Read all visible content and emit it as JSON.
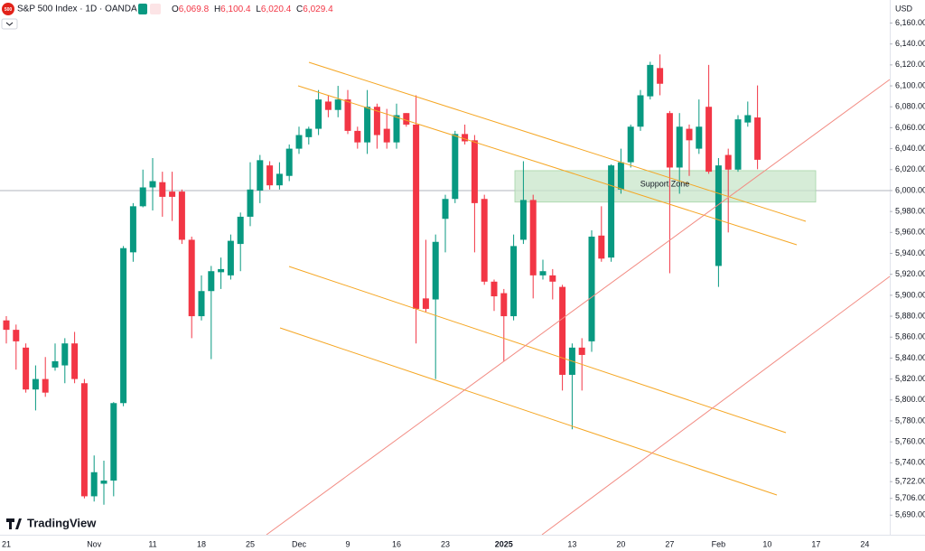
{
  "header": {
    "logo": "500",
    "title": "S&P 500 Index · 1D · OANDA",
    "o_label": "O",
    "o": "6,069.8",
    "h_label": "H",
    "h": "6,100.4",
    "l_label": "L",
    "l": "6,020.4",
    "c_label": "C",
    "c": "6,029.4",
    "brand": "TradingView"
  },
  "chart_data": {
    "type": "candlestick",
    "currency": "USD",
    "categories": [
      "21",
      null,
      null,
      null,
      null,
      null,
      null,
      null,
      null,
      "Nov",
      null,
      null,
      null,
      null,
      null,
      "11",
      null,
      null,
      null,
      null,
      "18",
      null,
      null,
      null,
      null,
      "25",
      null,
      null,
      null,
      null,
      "Dec",
      null,
      null,
      null,
      null,
      "9",
      null,
      null,
      null,
      null,
      "16",
      null,
      null,
      null,
      null,
      "23",
      null,
      null,
      null,
      null,
      null,
      "2025",
      null,
      null,
      null,
      null,
      null,
      null,
      "13",
      null,
      null,
      null,
      null,
      "20",
      null,
      null,
      null,
      null,
      "27",
      null,
      null,
      null,
      null,
      "Feb",
      null,
      null,
      null,
      null,
      "10",
      null,
      null,
      null,
      null,
      "17",
      null,
      null,
      null,
      null,
      "24",
      null
    ],
    "open": [
      5876,
      5867,
      5850,
      5810,
      5820,
      5831,
      5833,
      5854,
      5816,
      5708,
      5720,
      5723,
      5797,
      5941,
      5985,
      6003,
      6008,
      5999,
      5999,
      5953,
      5880,
      5904,
      5922,
      5919,
      5949,
      5975,
      6000,
      6024,
      6005,
      6014,
      6040,
      6051,
      6059,
      6085,
      6077,
      6087,
      6057,
      6046,
      6080,
      6059,
      6046,
      6074,
      6063,
      5897,
      5896,
      5973,
      5992,
      6054,
      6048,
      5992,
      5913,
      5902,
      5880,
      5953,
      5991,
      5919,
      5919,
      5908,
      5824,
      5850,
      5856,
      5957,
      5936,
      6001,
      6027,
      6061,
      6090,
      6117,
      6074,
      6022,
      6059,
      6040,
      6080,
      5928,
      6034,
      6020,
      6065,
      6069.8,
      null,
      null,
      null,
      null,
      null,
      null,
      null,
      null,
      null,
      null,
      null,
      null
    ],
    "high": [
      5880,
      5872,
      5854,
      5833,
      5841,
      5854,
      5859,
      5865,
      5820,
      5747,
      5742,
      5798,
      5947,
      5988,
      6020,
      6031,
      6018,
      6018,
      6001,
      5956,
      5919,
      5928,
      5936,
      5958,
      5979,
      6027,
      6034,
      6028,
      6027,
      6044,
      6061,
      6061,
      6096,
      6091,
      6100,
      6096,
      6061,
      6096,
      6083,
      6078,
      6083,
      6074,
      6091,
      5953,
      5958,
      5996,
      6057,
      6063,
      6053,
      5996,
      5915,
      5906,
      5958,
      6028,
      5996,
      5934,
      5925,
      5910,
      5854,
      5859,
      5962,
      5985,
      6025,
      6040,
      6063,
      6096,
      6123,
      6130,
      6076,
      6074,
      6063,
      6087,
      6120,
      6031,
      6040,
      6072,
      6085,
      6100.4,
      null,
      null,
      null,
      null,
      null,
      null,
      null,
      null,
      null,
      null,
      null,
      null
    ],
    "low": [
      5854,
      5829,
      5807,
      5790,
      5803,
      5828,
      5816,
      5816,
      5706,
      5703,
      5700,
      5708,
      5794,
      5932,
      5984,
      5981,
      5975,
      5971,
      5949,
      5859,
      5876,
      5839,
      5906,
      5915,
      5923,
      5966,
      5988,
      6001,
      6001,
      6009,
      6035,
      6044,
      6053,
      6070,
      6070,
      6054,
      6040,
      6035,
      6040,
      6040,
      6040,
      6061,
      5854,
      5884,
      5820,
      5941,
      5988,
      6044,
      5941,
      5910,
      5885,
      5837,
      5876,
      5949,
      5897,
      5915,
      5896,
      5809,
      5772,
      5809,
      5846,
      5932,
      5932,
      5997,
      6022,
      6057,
      6087,
      6091,
      5921,
      5997,
      6014,
      6035,
      6016,
      5908,
      5960,
      6018,
      6061,
      6020.4,
      null,
      null,
      null,
      null,
      null,
      null,
      null,
      null,
      null,
      null,
      null,
      null
    ],
    "close": [
      5867,
      5856,
      5810,
      5820,
      5807,
      5837,
      5854,
      5820,
      5708,
      5731,
      5723,
      5797,
      5945,
      5985,
      6003,
      6009,
      5994,
      5994,
      5953,
      5880,
      5904,
      5923,
      5925,
      5952,
      5975,
      6001,
      6029,
      6005,
      6016,
      6040,
      6053,
      6059,
      6087,
      6077,
      6087,
      6057,
      6046,
      6080,
      6053,
      6046,
      6072,
      6063,
      5887,
      5887,
      5951,
      5992,
      6054,
      6047,
      5988,
      5913,
      5899,
      5880,
      5947,
      5991,
      5919,
      5923,
      5913,
      5824,
      5850,
      5843,
      5956,
      5935,
      6024,
      6027,
      6061,
      6091,
      6120,
      6102,
      6022,
      6061,
      6048,
      6061,
      6018,
      6024,
      6020,
      6068,
      6072,
      6029.4,
      null,
      null,
      null,
      null,
      null,
      null,
      null,
      null,
      null,
      null,
      null,
      null
    ],
    "up_color": "#089981",
    "down_color": "#f23645",
    "zone": {
      "text": "Support Zone",
      "low": 5989,
      "high": 6019,
      "color": "#c8e6c9"
    },
    "ylim": [
      5673,
      6182
    ],
    "yticks": [
      {
        "value": 6160,
        "label": "6,160.00"
      },
      {
        "value": 6140,
        "label": "6,140.00"
      },
      {
        "value": 6120,
        "label": "6,120.00"
      },
      {
        "value": 6100,
        "label": "6,100.00"
      },
      {
        "value": 6080,
        "label": "6,080.00"
      },
      {
        "value": 6060,
        "label": "6,060.00"
      },
      {
        "value": 6040,
        "label": "6,040.00"
      },
      {
        "value": 6020,
        "label": "6,020.00"
      },
      {
        "value": 6000,
        "label": "6,000.00"
      },
      {
        "value": 5980,
        "label": "5,980.00"
      },
      {
        "value": 5960,
        "label": "5,960.00"
      },
      {
        "value": 5940,
        "label": "5,940.00"
      },
      {
        "value": 5920,
        "label": "5,920.00"
      },
      {
        "value": 5900,
        "label": "5,900.00"
      },
      {
        "value": 5880,
        "label": "5,880.00"
      },
      {
        "value": 5860,
        "label": "5,860.00"
      },
      {
        "value": 5840,
        "label": "5,840.00"
      },
      {
        "value": 5820,
        "label": "5,820.00"
      },
      {
        "value": 5800,
        "label": "5,800.00"
      },
      {
        "value": 5780,
        "label": "5,780.00"
      },
      {
        "value": 5760,
        "label": "5,760.00"
      },
      {
        "value": 5740,
        "label": "5,740.00"
      },
      {
        "value": 5722,
        "label": "5,722.00"
      },
      {
        "value": 5706,
        "label": "5,706.00"
      },
      {
        "value": 5690,
        "label": "5,690.00"
      }
    ]
  }
}
